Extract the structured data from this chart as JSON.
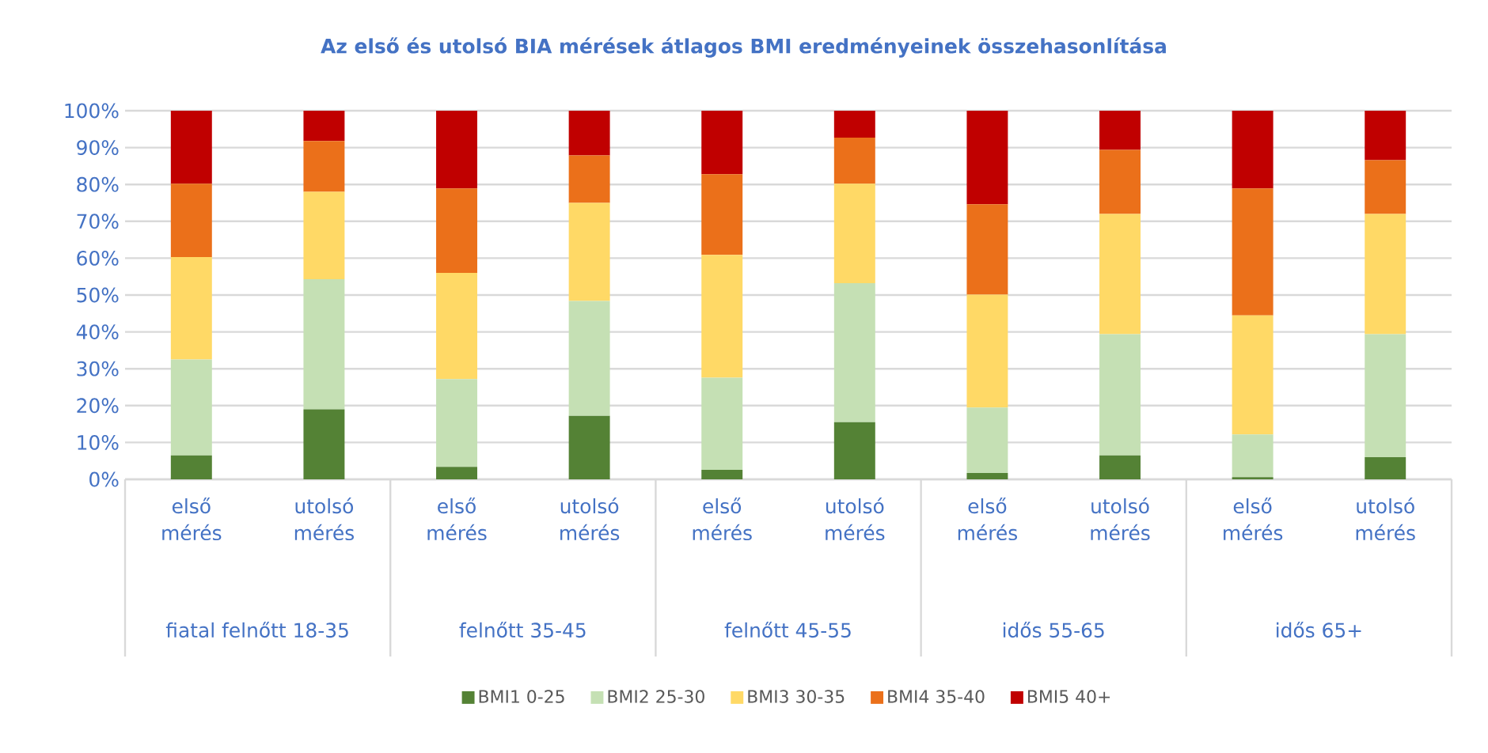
{
  "chart_data": {
    "type": "bar",
    "stacked": true,
    "title": "Az első és utolsó BIA mérések átlagos BMI eredményeinek összehasonlítása",
    "categories": [
      "első mérés",
      "utolsó mérés",
      "első mérés",
      "utolsó mérés",
      "első mérés",
      "utolsó mérés",
      "első mérés",
      "utolsó mérés",
      "első mérés",
      "utolsó mérés"
    ],
    "annotations": [
      "fiatal felnőtt 18-35",
      "felnőtt 35-45",
      "felnőtt 45-55",
      "idős 55-65",
      "idős 65+"
    ],
    "series": [
      {
        "name": "BMI1 0-25",
        "color": "#548235",
        "values": [
          6.5,
          19,
          3.4,
          17.2,
          2.6,
          15.5,
          1.7,
          6.5,
          0.6,
          6
        ]
      },
      {
        "name": "BMI2 25-30",
        "color": "#c5e0b4",
        "values": [
          26,
          35.3,
          23.8,
          31.2,
          25,
          37.7,
          17.8,
          32.9,
          11.6,
          33.4
        ]
      },
      {
        "name": "BMI3 30-35",
        "color": "#ffd966",
        "values": [
          27.8,
          23.7,
          28.8,
          26.6,
          33.3,
          27,
          30.6,
          32.6,
          32.3,
          32.6
        ]
      },
      {
        "name": "BMI4 35-40",
        "color": "#eb701a",
        "values": [
          19.9,
          13.8,
          22.9,
          12.9,
          21.9,
          12.5,
          24.5,
          17.4,
          34.4,
          14.6
        ]
      },
      {
        "name": "BMI5 40+",
        "color": "#c00000",
        "values": [
          19.8,
          8.2,
          21.1,
          12.1,
          17.2,
          7.3,
          25.4,
          10.6,
          21.1,
          13.4
        ]
      }
    ],
    "ylim": [
      0,
      100
    ],
    "yticks": [
      {
        "value": 0,
        "label": "0%"
      },
      {
        "value": 10,
        "label": "10%"
      },
      {
        "value": 20,
        "label": "20%"
      },
      {
        "value": 30,
        "label": "30%"
      },
      {
        "value": 40,
        "label": "40%"
      },
      {
        "value": 50,
        "label": "50%"
      },
      {
        "value": 60,
        "label": "60%"
      },
      {
        "value": 70,
        "label": "70%"
      },
      {
        "value": 80,
        "label": "80%"
      },
      {
        "value": 90,
        "label": "90%"
      },
      {
        "value": 100,
        "label": "100%"
      }
    ],
    "grid": "y",
    "legend": "bottom"
  }
}
